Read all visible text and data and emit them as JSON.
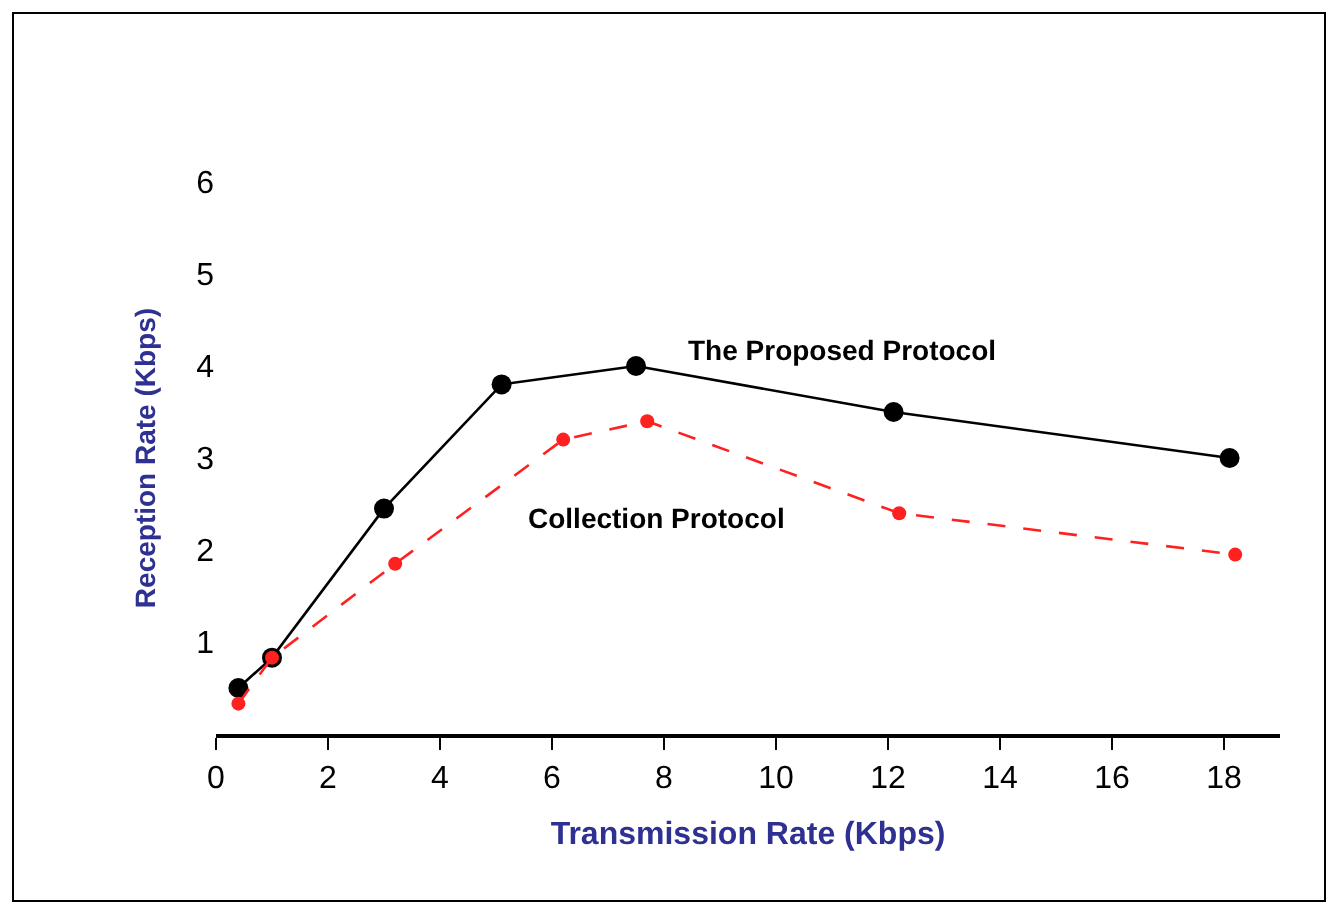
{
  "chart_data": {
    "type": "line",
    "xlabel": "Transmission Rate (Kbps)",
    "ylabel": "Reception Rate (Kbps)",
    "xlim": [
      0,
      19
    ],
    "xticks": [
      0,
      2,
      4,
      6,
      8,
      10,
      12,
      14,
      16,
      18
    ],
    "ylim": [
      0,
      6
    ],
    "yticks": [
      1,
      2,
      3,
      4,
      5,
      6
    ],
    "grid": false,
    "legend": false,
    "marker": "circle",
    "series": [
      {
        "name": "The Proposed Protocol",
        "color": "#000000",
        "line_style": "solid",
        "x": [
          0.4,
          1.0,
          3.0,
          5.1,
          7.5,
          12.1,
          18.1
        ],
        "values": [
          0.5,
          0.83,
          2.45,
          3.8,
          4.0,
          3.5,
          3.0
        ]
      },
      {
        "name": "Collection Protocol",
        "color": "#ff2020",
        "line_style": "dashed",
        "x": [
          0.4,
          1.0,
          3.2,
          6.2,
          7.7,
          12.2,
          18.2
        ],
        "values": [
          0.33,
          0.83,
          1.85,
          3.2,
          3.4,
          2.4,
          1.95
        ]
      }
    ]
  }
}
